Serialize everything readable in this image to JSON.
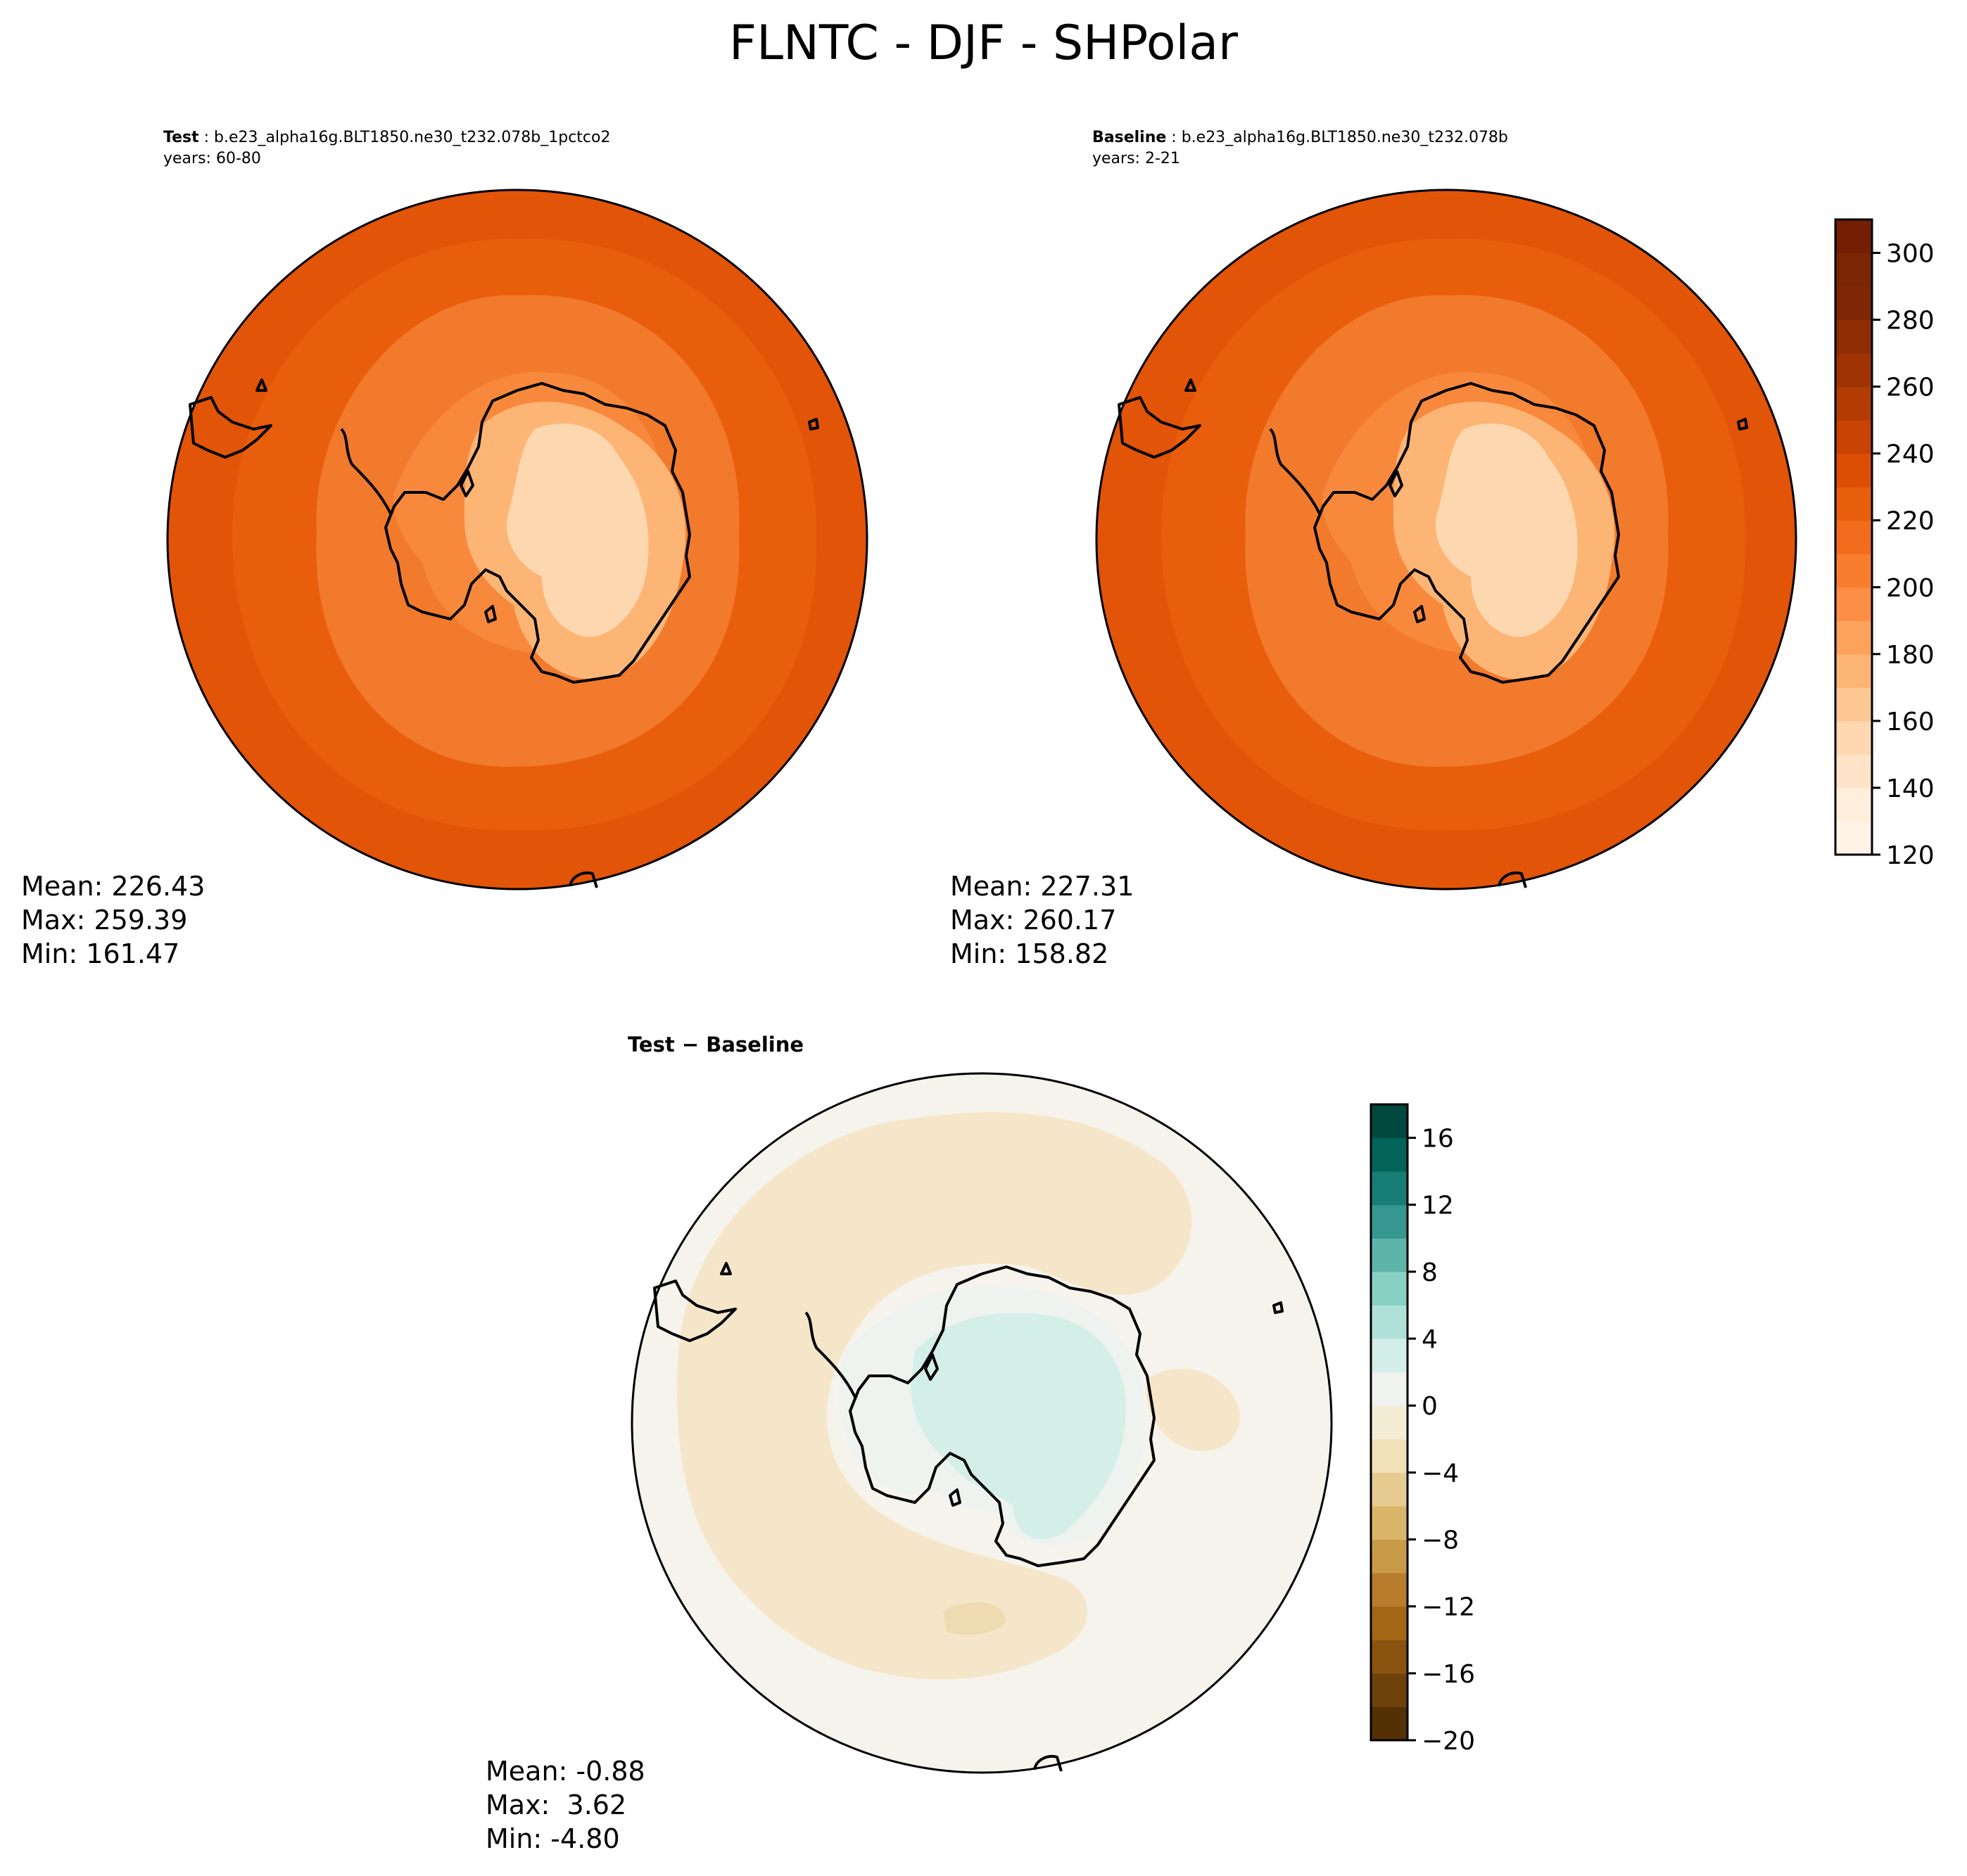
{
  "figure": {
    "title": "FLNTC - DJF - SHPolar"
  },
  "panels": {
    "test": {
      "label": "Test",
      "case": " : b.e23_alpha16g.BLT1850.ne30_t232.078b_1pctco2",
      "years": "years: 60-80",
      "mean": "Mean: 226.43",
      "max": "Max: 259.39",
      "min": "Min: 161.47"
    },
    "baseline": {
      "label": "Baseline",
      "case": " : b.e23_alpha16g.BLT1850.ne30_t232.078b",
      "years": "years: 2-21",
      "mean": "Mean: 227.31",
      "max": "Max: 260.17",
      "min": "Min: 158.82"
    },
    "diff": {
      "title": "Test − Baseline",
      "mean": "Mean: -0.88",
      "max": "Max:  3.62",
      "min": "Min: -4.80"
    }
  },
  "chart_data": [
    {
      "type": "heatmap",
      "name": "Test",
      "projection": "south-polar-stereographic",
      "colormap": "Oranges",
      "colorbar": {
        "range": [
          120,
          310
        ],
        "ticks": [
          120,
          140,
          160,
          180,
          200,
          220,
          240,
          260,
          280,
          300
        ],
        "levels": [
          120,
          130,
          140,
          150,
          160,
          170,
          180,
          190,
          200,
          210,
          220,
          230,
          240,
          250,
          260,
          270,
          280,
          290,
          300,
          310
        ]
      },
      "stats": {
        "mean": 226.43,
        "max": 259.39,
        "min": 161.47
      }
    },
    {
      "type": "heatmap",
      "name": "Baseline",
      "projection": "south-polar-stereographic",
      "colormap": "Oranges",
      "stats": {
        "mean": 227.31,
        "max": 260.17,
        "min": 158.82
      }
    },
    {
      "type": "heatmap",
      "name": "Test − Baseline",
      "projection": "south-polar-stereographic",
      "colormap": "BrBG",
      "colorbar": {
        "range": [
          -20,
          18
        ],
        "ticks": [
          -20,
          -16,
          -12,
          -8,
          -4,
          0,
          4,
          8,
          12,
          16
        ],
        "tick_labels": [
          "−20",
          "−16",
          "−12",
          "−8",
          "−4",
          "0",
          "4",
          "8",
          "12",
          "16"
        ],
        "levels": [
          -20,
          -18,
          -16,
          -14,
          -12,
          -10,
          -8,
          -6,
          -4,
          -2,
          0,
          2,
          4,
          6,
          8,
          10,
          12,
          14,
          16,
          18
        ]
      },
      "stats": {
        "mean": -0.88,
        "max": 3.62,
        "min": -4.8
      }
    }
  ],
  "colors": {
    "oranges": [
      "#fff3e7",
      "#ffeedb",
      "#fee3c8",
      "#fdd7af",
      "#fdc793",
      "#fdb576",
      "#fda25c",
      "#fd8e45",
      "#f87d2f",
      "#f26c1e",
      "#e95e0d",
      "#dc4e03",
      "#c94302",
      "#b33c02",
      "#9f3303",
      "#8e2d04",
      "#7f2704",
      "#7a2504",
      "#741f03"
    ],
    "brbg": [
      "#543005",
      "#6f410a",
      "#8a530f",
      "#a36615",
      "#b77d2c",
      "#c99a48",
      "#dab66b",
      "#e6cc91",
      "#f0e1b8",
      "#f5ecd6",
      "#eef3f0",
      "#d3ede8",
      "#b0e1d9",
      "#88d0c4",
      "#5fb4aa",
      "#35978f",
      "#187d75",
      "#026459",
      "#01493f"
    ],
    "outer_ocean": "#e25407",
    "mid_ocean": "#ef6b1c",
    "near_ocean": "#f27a2c",
    "diff_neutral": "#f5f3eb",
    "diff_negative": "#f5e6c9",
    "diff_positive": "#d4eee8"
  }
}
